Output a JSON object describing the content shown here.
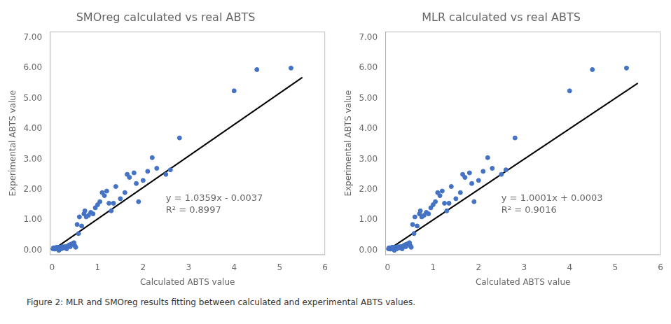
{
  "chart_data": [
    {
      "type": "scatter",
      "title": "SMOreg calculated vs real ABTS",
      "x_label": "Calculated ABTS value",
      "y_label": "Experimental ABTS value",
      "xlim": [
        -0.05,
        6.0
      ],
      "ylim": [
        -0.15,
        7.2
      ],
      "xticks": [
        0,
        1,
        2,
        3,
        4,
        5,
        6
      ],
      "yticks": [
        {
          "value": 0.0,
          "label": "0.00"
        },
        {
          "value": 1.0,
          "label": "1.00"
        },
        {
          "value": 2.0,
          "label": "2.00"
        },
        {
          "value": 3.0,
          "label": "3.00"
        },
        {
          "value": 4.0,
          "label": "4.00"
        },
        {
          "value": 5.0,
          "label": "5.00"
        },
        {
          "value": 6.0,
          "label": "6.00"
        },
        {
          "value": 7.0,
          "label": "7.00"
        }
      ],
      "grid": false,
      "series": [
        {
          "type": "scatter",
          "color": "#4472C4",
          "x": [
            0.02,
            0.03,
            0.04,
            0.05,
            0.06,
            0.07,
            0.08,
            0.09,
            0.1,
            0.11,
            0.12,
            0.13,
            0.14,
            0.15,
            0.16,
            0.17,
            0.18,
            0.19,
            0.2,
            0.22,
            0.25,
            0.28,
            0.3,
            0.32,
            0.35,
            0.38,
            0.4,
            0.42,
            0.45,
            0.48,
            0.5,
            0.52,
            0.55,
            0.58,
            0.6,
            0.65,
            0.7,
            0.72,
            0.75,
            0.8,
            0.85,
            0.9,
            0.95,
            1.0,
            1.05,
            1.1,
            1.15,
            1.2,
            1.25,
            1.3,
            1.35,
            1.4,
            1.5,
            1.6,
            1.65,
            1.7,
            1.8,
            1.85,
            1.9,
            2.0,
            2.1,
            2.2,
            2.3,
            2.5,
            2.6,
            2.8,
            4.0,
            4.5,
            5.25
          ],
          "values": [
            0.05,
            0.08,
            0.05,
            0.08,
            0.04,
            0.06,
            0.05,
            0.07,
            0.1,
            0.08,
            0.06,
            0.09,
            0.05,
            0.0,
            0.08,
            0.06,
            0.1,
            0.05,
            0.05,
            0.12,
            0.08,
            0.12,
            0.1,
            0.05,
            0.15,
            0.18,
            0.12,
            0.2,
            0.22,
            0.25,
            0.15,
            0.1,
            0.85,
            0.55,
            1.1,
            0.8,
            1.2,
            1.3,
            1.1,
            1.15,
            1.25,
            1.2,
            1.4,
            1.5,
            1.6,
            1.9,
            1.8,
            1.95,
            1.55,
            1.3,
            1.55,
            2.1,
            1.7,
            1.9,
            2.5,
            2.4,
            2.55,
            2.2,
            1.6,
            2.3,
            2.6,
            3.05,
            2.7,
            2.5,
            2.65,
            3.7,
            5.25,
            5.95,
            6.0
          ]
        },
        {
          "type": "line",
          "color": "#000000",
          "x": [
            0,
            5.5
          ],
          "values": [
            -0.0037,
            5.69375
          ]
        }
      ],
      "annotations": [
        {
          "text": "y = 1.0359x - 0.0037\nR² = 0.8997",
          "x": 2.5,
          "y": 1.85
        }
      ]
    },
    {
      "type": "scatter",
      "title": "MLR calculated vs real ABTS",
      "x_label": "Calculated ABTS value",
      "y_label": "Experimental ABTS value",
      "xlim": [
        -0.05,
        6.0
      ],
      "ylim": [
        -0.15,
        7.2
      ],
      "xticks": [
        0,
        1,
        2,
        3,
        4,
        5,
        6
      ],
      "yticks": [
        {
          "value": 0.0,
          "label": "0.00"
        },
        {
          "value": 1.0,
          "label": "1.00"
        },
        {
          "value": 2.0,
          "label": "2.00"
        },
        {
          "value": 3.0,
          "label": "3.00"
        },
        {
          "value": 4.0,
          "label": "4.00"
        },
        {
          "value": 5.0,
          "label": "5.00"
        },
        {
          "value": 6.0,
          "label": "6.00"
        },
        {
          "value": 7.0,
          "label": "7.00"
        }
      ],
      "grid": false,
      "series": [
        {
          "type": "scatter",
          "color": "#4472C4",
          "x": [
            0.02,
            0.03,
            0.04,
            0.05,
            0.06,
            0.07,
            0.08,
            0.09,
            0.1,
            0.11,
            0.12,
            0.13,
            0.14,
            0.15,
            0.16,
            0.17,
            0.18,
            0.19,
            0.2,
            0.22,
            0.25,
            0.28,
            0.3,
            0.32,
            0.35,
            0.38,
            0.4,
            0.42,
            0.45,
            0.48,
            0.5,
            0.52,
            0.55,
            0.58,
            0.6,
            0.65,
            0.7,
            0.72,
            0.75,
            0.8,
            0.85,
            0.9,
            0.95,
            1.0,
            1.05,
            1.1,
            1.15,
            1.2,
            1.25,
            1.3,
            1.35,
            1.4,
            1.5,
            1.6,
            1.65,
            1.7,
            1.8,
            1.85,
            1.9,
            2.0,
            2.1,
            2.2,
            2.3,
            2.5,
            2.6,
            2.8,
            4.0,
            4.5,
            5.25
          ],
          "values": [
            0.05,
            0.08,
            0.05,
            0.08,
            0.04,
            0.06,
            0.05,
            0.07,
            0.1,
            0.08,
            0.06,
            0.09,
            0.05,
            0.0,
            0.08,
            0.06,
            0.1,
            0.05,
            0.05,
            0.12,
            0.08,
            0.12,
            0.1,
            0.05,
            0.15,
            0.18,
            0.12,
            0.2,
            0.22,
            0.25,
            0.15,
            0.1,
            0.85,
            0.55,
            1.1,
            0.8,
            1.2,
            1.3,
            1.1,
            1.15,
            1.25,
            1.2,
            1.4,
            1.5,
            1.6,
            1.9,
            1.8,
            1.95,
            1.55,
            1.3,
            1.55,
            2.1,
            1.7,
            1.9,
            2.5,
            2.4,
            2.55,
            2.2,
            1.6,
            2.3,
            2.6,
            3.05,
            2.7,
            2.5,
            2.65,
            3.7,
            5.25,
            5.95,
            6.0
          ]
        },
        {
          "type": "line",
          "color": "#000000",
          "x": [
            0,
            5.5
          ],
          "values": [
            0.0003,
            5.50085
          ]
        }
      ],
      "annotations": [
        {
          "text": "y = 1.0001x + 0.0003\nR² = 0.9016",
          "x": 2.5,
          "y": 1.85
        }
      ]
    }
  ],
  "caption": "Figure 2: MLR and SMOreg results fitting between calculated and experimental ABTS values."
}
